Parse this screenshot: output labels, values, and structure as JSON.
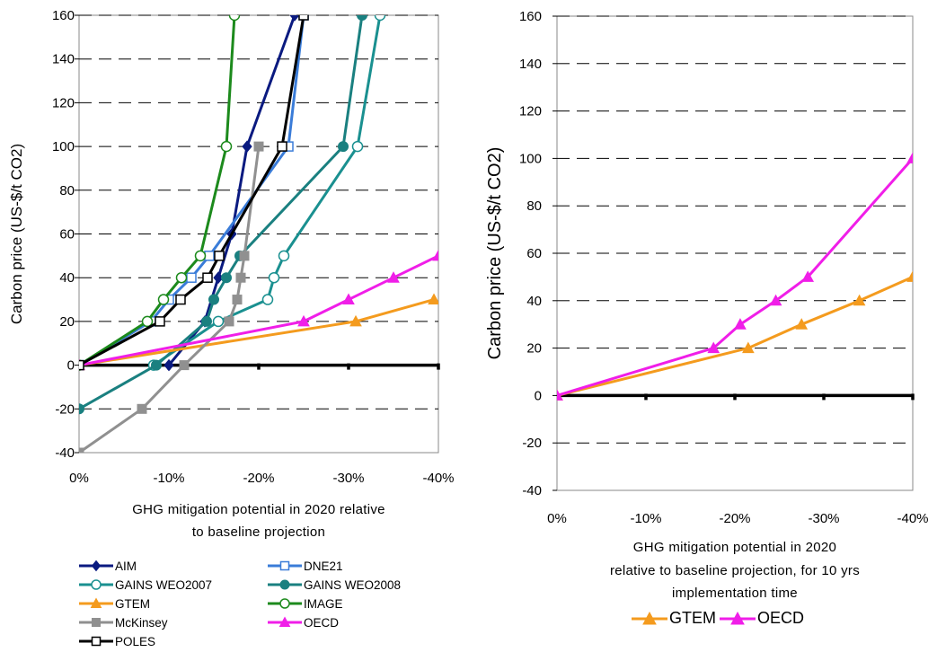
{
  "colors": {
    "AIM": "#0a1a80",
    "DNE21": "#3a7cd8",
    "GAINS WEO2007": "#1a9090",
    "GAINS WEO2008": "#1a8080",
    "GTEM": "#f49b1e",
    "IMAGE": "#1c8a1c",
    "McKinsey": "#909090",
    "OECD": "#f01ee8",
    "POLES": "#000000"
  },
  "chart_data": [
    {
      "type": "line",
      "title": "",
      "xlabel": "GHG mitigation potential in 2020 relative to baseline projection",
      "xlabel_lines": [
        "GHG mitigation potential in 2020 relative",
        "to baseline projection"
      ],
      "ylabel": "Carbon price (US-$/t CO2)",
      "xlim": [
        0,
        -40
      ],
      "ylim": [
        -40,
        160
      ],
      "x_ticks": [
        0,
        -10,
        -20,
        -30,
        -40
      ],
      "x_tick_labels": [
        "0%",
        "-10%",
        "-20%",
        "-30%",
        "-40%"
      ],
      "y_ticks": [
        -40,
        -20,
        0,
        20,
        40,
        60,
        80,
        100,
        120,
        140,
        160
      ],
      "y_tick_labels": [
        "-40",
        "-20",
        "0",
        "20",
        "40",
        "60",
        "80",
        "100",
        "120",
        "140",
        "160"
      ],
      "grid": "horizontal dashed",
      "legend_position": "bottom",
      "series": [
        {
          "name": "AIM",
          "marker": "diamond",
          "x": [
            -10,
            -14,
            -15.5,
            -17,
            -18.7,
            -24
          ],
          "y": [
            0,
            20,
            40,
            60,
            100,
            160
          ]
        },
        {
          "name": "DNE21",
          "marker": "open-square",
          "x": [
            0,
            -8,
            -10,
            -12.5,
            -14.5,
            -23.3,
            -25
          ],
          "y": [
            0,
            20,
            30,
            40,
            50,
            100,
            160
          ]
        },
        {
          "name": "GAINS WEO2007",
          "marker": "open-circle",
          "x": [
            -8.3,
            -15.5,
            -21,
            -21.7,
            -22.8,
            -31,
            -33.5
          ],
          "y": [
            0,
            20,
            30,
            40,
            50,
            100,
            160
          ]
        },
        {
          "name": "GAINS WEO2008",
          "marker": "filled-circle",
          "x": [
            0,
            -8.6,
            -14.2,
            -15,
            -16.4,
            -17.9,
            -29.4,
            -31.5
          ],
          "y": [
            -20,
            0,
            20,
            30,
            40,
            50,
            100,
            160
          ]
        },
        {
          "name": "GTEM",
          "marker": "triangle",
          "x": [
            0,
            -30.8,
            -39.5
          ],
          "y": [
            0,
            20,
            30
          ]
        },
        {
          "name": "IMAGE",
          "marker": "open-circle",
          "x": [
            0,
            -7.6,
            -9.4,
            -11.4,
            -13.5,
            -16.4,
            -17.3
          ],
          "y": [
            0,
            20,
            30,
            40,
            50,
            100,
            160
          ]
        },
        {
          "name": "McKinsey",
          "marker": "filled-square",
          "x": [
            0,
            -7,
            -11.7,
            -16.7,
            -17.6,
            -18,
            -18.4,
            -20
          ],
          "y": [
            -40,
            -20,
            0,
            20,
            30,
            40,
            50,
            100
          ]
        },
        {
          "name": "OECD",
          "marker": "triangle",
          "x": [
            0,
            -25,
            -30,
            -35,
            -40
          ],
          "y": [
            0,
            20,
            30,
            40,
            50
          ]
        },
        {
          "name": "POLES",
          "marker": "open-square",
          "x": [
            0,
            -9,
            -11.3,
            -14.3,
            -15.6,
            -22.6,
            -25
          ],
          "y": [
            0,
            20,
            30,
            40,
            50,
            100,
            160
          ]
        }
      ]
    },
    {
      "type": "line",
      "title": "",
      "xlabel": "GHG mitigation potential in 2020 relative to baseline projection, for 10 yrs implementation time",
      "xlabel_lines": [
        "GHG mitigation potential in 2020",
        "relative to baseline projection, for 10 yrs",
        "implementation time"
      ],
      "ylabel": "Carbon price (US-$/t CO2)",
      "xlim": [
        0,
        -40
      ],
      "ylim": [
        -40,
        160
      ],
      "x_ticks": [
        0,
        -10,
        -20,
        -30,
        -40
      ],
      "x_tick_labels": [
        "0%",
        "-10%",
        "-20%",
        "-30%",
        "-40%"
      ],
      "y_ticks": [
        -40,
        -20,
        0,
        20,
        40,
        60,
        80,
        100,
        120,
        140,
        160
      ],
      "y_tick_labels": [
        "-40",
        "-20",
        "0",
        "20",
        "40",
        "60",
        "80",
        "100",
        "120",
        "140",
        "160"
      ],
      "grid": "horizontal dashed",
      "legend_position": "bottom",
      "series": [
        {
          "name": "GTEM",
          "marker": "triangle",
          "x": [
            0,
            -21.5,
            -27.5,
            -34,
            -40
          ],
          "y": [
            0,
            20,
            30,
            40,
            50
          ]
        },
        {
          "name": "OECD",
          "marker": "triangle",
          "x": [
            0,
            -17.6,
            -20.6,
            -24.6,
            -28.2,
            -40
          ],
          "y": [
            0,
            20,
            30,
            40,
            50,
            100
          ]
        }
      ]
    }
  ]
}
